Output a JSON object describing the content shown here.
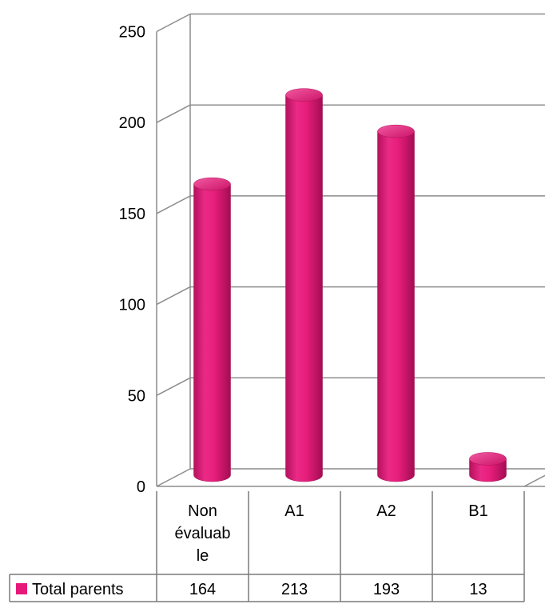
{
  "chart_data": {
    "type": "bar",
    "style": "3d-cylinder",
    "categories": [
      [
        "Non",
        "évaluab",
        "le"
      ],
      [
        "A1"
      ],
      [
        "A2"
      ],
      [
        "B1"
      ]
    ],
    "series": [
      {
        "name": "Total parents",
        "values": [
          164,
          213,
          193,
          13
        ],
        "color": "#e6197a"
      }
    ],
    "ylim": [
      0,
      250
    ],
    "yticks": [
      0,
      50,
      100,
      150,
      200,
      250
    ],
    "grid": true,
    "data_table": true,
    "legend": "data-table-left"
  }
}
